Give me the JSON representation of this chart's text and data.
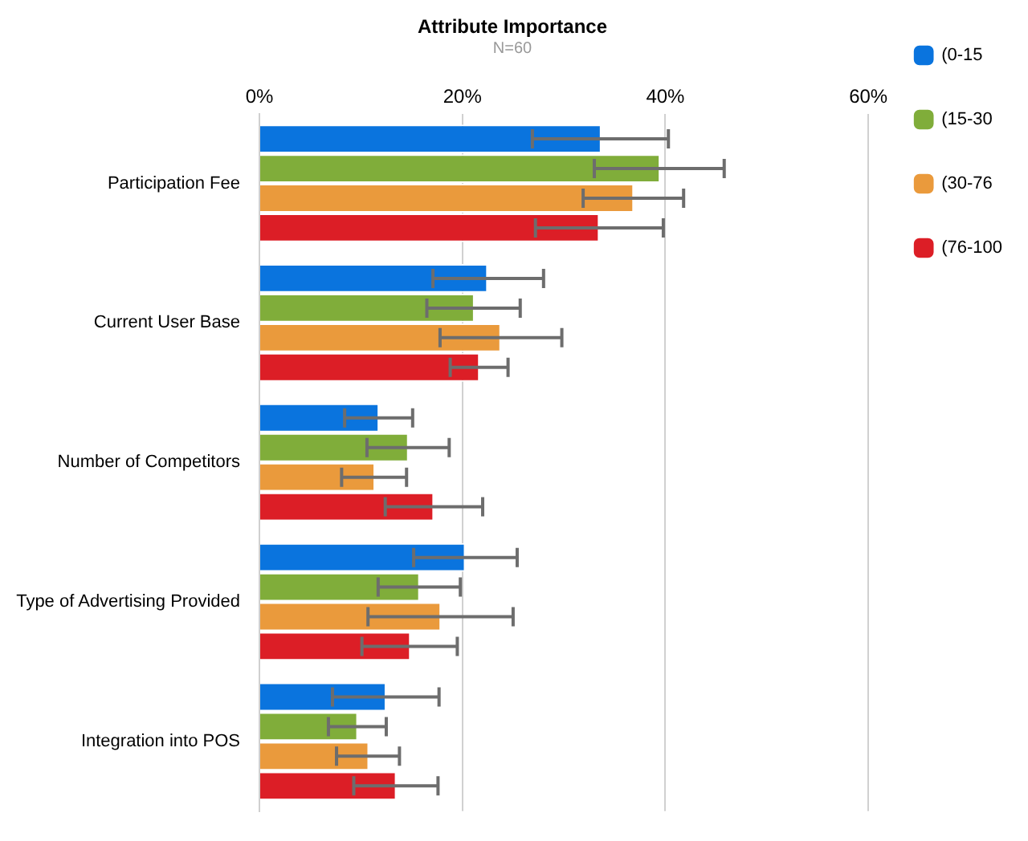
{
  "chart_data": {
    "type": "bar",
    "orientation": "horizontal",
    "title": "Attribute Importance",
    "subtitle": "N=60",
    "categories": [
      "Participation Fee",
      "Current User Base",
      "Number of Competitors",
      "Type of Advertising Provided",
      "Integration into POS"
    ],
    "series": [
      {
        "name": "(0-15",
        "color": "#0a74de",
        "values": [
          33.7,
          22.5,
          11.8,
          20.3,
          12.5
        ],
        "errors": [
          [
            26.9,
            40.3
          ],
          [
            17.1,
            28.0
          ],
          [
            8.4,
            15.1
          ],
          [
            15.2,
            25.4
          ],
          [
            7.2,
            17.7
          ]
        ]
      },
      {
        "name": "(15-30",
        "color": "#80ad3a",
        "values": [
          39.5,
          21.2,
          14.7,
          15.8,
          9.7
        ],
        "errors": [
          [
            33.0,
            45.8
          ],
          [
            16.5,
            25.7
          ],
          [
            10.6,
            18.7
          ],
          [
            11.7,
            19.8
          ],
          [
            6.8,
            12.5
          ]
        ]
      },
      {
        "name": "(30-76",
        "color": "#ea9a3c",
        "values": [
          36.9,
          23.8,
          11.4,
          17.9,
          10.8
        ],
        "errors": [
          [
            31.9,
            41.8
          ],
          [
            17.8,
            29.8
          ],
          [
            8.1,
            14.5
          ],
          [
            10.7,
            25.0
          ],
          [
            7.6,
            13.8
          ]
        ]
      },
      {
        "name": "(76-100",
        "color": "#dc1e26",
        "values": [
          33.5,
          21.7,
          17.2,
          14.9,
          13.5
        ],
        "errors": [
          [
            27.2,
            39.8
          ],
          [
            18.8,
            24.5
          ],
          [
            12.4,
            22.0
          ],
          [
            10.1,
            19.5
          ],
          [
            9.3,
            17.6
          ]
        ]
      }
    ],
    "xlim": [
      0,
      60
    ],
    "xticks": [
      {
        "value": 0,
        "label": "0%"
      },
      {
        "value": 20,
        "label": "20%"
      },
      {
        "value": 40,
        "label": "40%"
      },
      {
        "value": 60,
        "label": "60%"
      }
    ],
    "grid": "x",
    "legend": "right"
  }
}
